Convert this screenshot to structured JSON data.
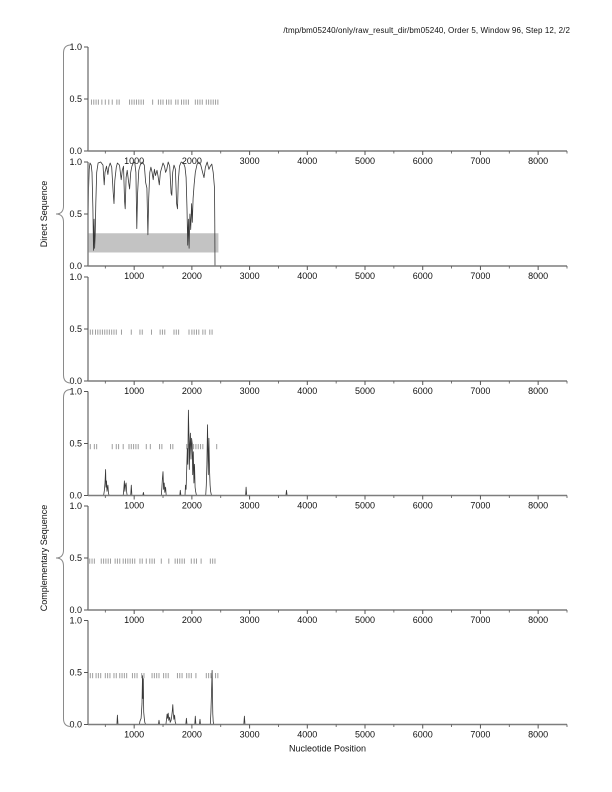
{
  "page": {
    "title": "/tmp/bm05240/only/raw_result_dir/bm05240, Order 5, Window 96, Step 12, 2/2"
  },
  "chart_data": {
    "type": "line",
    "title": "/tmp/bm05240/only/raw_result_dir/bm05240, Order 5, Window 96, Step 12, 2/2",
    "xlabel": "Nucleotide Position",
    "ylabel_groups": [
      "Direct Sequence",
      "Complementary Sequence"
    ],
    "xlim": [
      200,
      8500
    ],
    "ylim": [
      0,
      1
    ],
    "x_major_ticks": [
      1000,
      2000,
      3000,
      4000,
      5000,
      6000,
      7000,
      8000
    ],
    "x_minor_ticks": [
      500,
      1500,
      2500,
      3500,
      4500,
      5500,
      6500,
      7500,
      8500
    ],
    "y_ticks": [
      0.0,
      0.5,
      1.0
    ],
    "grid": false,
    "legend": null,
    "mark_row_y": 0.47,
    "colors": {
      "curve": "#383838",
      "marks": "#9e9e9e",
      "axis": "#7d7d7d",
      "tick": "#555555",
      "band": "#c3c3c3",
      "text": "#111111",
      "brace": "#8a8a8a"
    },
    "groups": [
      {
        "label": "Direct Sequence",
        "panel_indexes": [
          0,
          1,
          2
        ]
      },
      {
        "label": "Complementary Sequence",
        "panel_indexes": [
          3,
          4,
          5
        ]
      }
    ],
    "panels": [
      {
        "name": "direct-orf-marks-a",
        "marks": [
          260,
          300,
          340,
          380,
          440,
          500,
          560,
          620,
          700,
          740,
          920,
          960,
          1000,
          1040,
          1080,
          1120,
          1160,
          1320,
          1420,
          1460,
          1500,
          1560,
          1600,
          1640,
          1720,
          1760,
          1820,
          1860,
          1900,
          1940,
          2060,
          2100,
          2140,
          2180,
          2250,
          2290,
          2330,
          2370,
          2410,
          2450
        ]
      },
      {
        "name": "direct-coding-potential",
        "band": {
          "x": [
            200,
            2460
          ],
          "y": [
            0.13,
            0.315
          ]
        },
        "curve": [
          [
            200,
            0.45
          ],
          [
            210,
            0.75
          ],
          [
            220,
            0.93
          ],
          [
            235,
            0.99
          ],
          [
            255,
            0.97
          ],
          [
            270,
            0.9
          ],
          [
            285,
            0.55
          ],
          [
            295,
            0.15
          ],
          [
            305,
            0.45
          ],
          [
            315,
            0.17
          ],
          [
            325,
            0.3
          ],
          [
            335,
            0.6
          ],
          [
            350,
            0.9
          ],
          [
            375,
            0.99
          ],
          [
            420,
            1.0
          ],
          [
            460,
            0.97
          ],
          [
            480,
            0.78
          ],
          [
            495,
            0.9
          ],
          [
            520,
            0.96
          ],
          [
            545,
            0.88
          ],
          [
            560,
            0.95
          ],
          [
            585,
            0.99
          ],
          [
            610,
            0.95
          ],
          [
            635,
            0.72
          ],
          [
            650,
            0.6
          ],
          [
            665,
            0.82
          ],
          [
            690,
            0.95
          ],
          [
            710,
            0.99
          ],
          [
            745,
            0.97
          ],
          [
            775,
            0.83
          ],
          [
            795,
            0.92
          ],
          [
            815,
            0.96
          ],
          [
            835,
            0.62
          ],
          [
            845,
            0.55
          ],
          [
            860,
            0.85
          ],
          [
            880,
            0.92
          ],
          [
            905,
            0.8
          ],
          [
            920,
            0.74
          ],
          [
            940,
            0.9
          ],
          [
            960,
            0.96
          ],
          [
            985,
            0.99
          ],
          [
            1010,
            1.0
          ],
          [
            1030,
            0.9
          ],
          [
            1045,
            0.36
          ],
          [
            1060,
            0.7
          ],
          [
            1080,
            0.92
          ],
          [
            1105,
            0.97
          ],
          [
            1140,
            1.0
          ],
          [
            1175,
            0.97
          ],
          [
            1200,
            0.8
          ],
          [
            1220,
            0.75
          ],
          [
            1238,
            0.3
          ],
          [
            1252,
            0.65
          ],
          [
            1270,
            0.9
          ],
          [
            1290,
            0.95
          ],
          [
            1310,
            0.9
          ],
          [
            1330,
            0.83
          ],
          [
            1350,
            0.93
          ],
          [
            1370,
            0.87
          ],
          [
            1395,
            0.92
          ],
          [
            1415,
            0.86
          ],
          [
            1435,
            0.78
          ],
          [
            1455,
            0.9
          ],
          [
            1475,
            0.94
          ],
          [
            1500,
            0.99
          ],
          [
            1525,
            0.96
          ],
          [
            1545,
            0.9
          ],
          [
            1565,
            0.93
          ],
          [
            1590,
            1.0
          ],
          [
            1615,
            0.96
          ],
          [
            1640,
            0.7
          ],
          [
            1652,
            0.68
          ],
          [
            1668,
            0.9
          ],
          [
            1690,
            0.97
          ],
          [
            1715,
            0.93
          ],
          [
            1735,
            0.6
          ],
          [
            1750,
            0.55
          ],
          [
            1765,
            0.82
          ],
          [
            1785,
            0.96
          ],
          [
            1815,
            1.0
          ],
          [
            1855,
            0.99
          ],
          [
            1880,
            0.95
          ],
          [
            1900,
            0.85
          ],
          [
            1915,
            0.55
          ],
          [
            1928,
            0.2
          ],
          [
            1940,
            0.45
          ],
          [
            1952,
            0.17
          ],
          [
            1965,
            0.5
          ],
          [
            1980,
            0.35
          ],
          [
            1995,
            0.6
          ],
          [
            2008,
            0.42
          ],
          [
            2022,
            0.65
          ],
          [
            2038,
            0.78
          ],
          [
            2060,
            0.9
          ],
          [
            2090,
            0.98
          ],
          [
            2120,
            1.0
          ],
          [
            2155,
            0.97
          ],
          [
            2185,
            0.9
          ],
          [
            2210,
            0.85
          ],
          [
            2235,
            0.95
          ],
          [
            2265,
            1.0
          ],
          [
            2295,
            0.93
          ],
          [
            2320,
            0.96
          ],
          [
            2345,
            0.98
          ],
          [
            2370,
            0.9
          ],
          [
            2392,
            0.75
          ],
          [
            2398,
            0.4
          ],
          [
            2400,
            0.0
          ]
        ]
      },
      {
        "name": "direct-orf-marks-b",
        "marks": [
          240,
          280,
          330,
          370,
          410,
          450,
          490,
          530,
          570,
          610,
          650,
          690,
          780,
          950,
          1100,
          1140,
          1300,
          1450,
          1490,
          1530,
          1690,
          1730,
          1770,
          1950,
          2000,
          2040,
          2080,
          2120,
          2190,
          2230,
          2310,
          2350
        ]
      },
      {
        "name": "complementary-coding-potential-a",
        "marks": [
          240,
          310,
          350,
          620,
          690,
          730,
          810,
          910,
          950,
          990,
          1030,
          1070,
          1210,
          1280,
          1440,
          1480,
          1630,
          1670,
          1910,
          1950,
          1990,
          2030,
          2070,
          2110,
          2150,
          2190,
          2270,
          2430
        ],
        "curve": [
          [
            200,
            0
          ],
          [
            470,
            0
          ],
          [
            485,
            0.05
          ],
          [
            495,
            0.12
          ],
          [
            505,
            0.25
          ],
          [
            512,
            0.08
          ],
          [
            520,
            0.14
          ],
          [
            530,
            0.04
          ],
          [
            545,
            0.1
          ],
          [
            555,
            0.02
          ],
          [
            565,
            0
          ],
          [
            810,
            0
          ],
          [
            820,
            0.06
          ],
          [
            830,
            0.14
          ],
          [
            840,
            0.04
          ],
          [
            850,
            0.1
          ],
          [
            860,
            0.12
          ],
          [
            870,
            0.03
          ],
          [
            880,
            0
          ],
          [
            940,
            0
          ],
          [
            950,
            0.1
          ],
          [
            960,
            0
          ],
          [
            1150,
            0
          ],
          [
            1160,
            0.03
          ],
          [
            1170,
            0
          ],
          [
            1470,
            0
          ],
          [
            1480,
            0.08
          ],
          [
            1490,
            0.16
          ],
          [
            1500,
            0.23
          ],
          [
            1510,
            0.06
          ],
          [
            1520,
            0.12
          ],
          [
            1530,
            0.03
          ],
          [
            1545,
            0.08
          ],
          [
            1555,
            0
          ],
          [
            1790,
            0
          ],
          [
            1800,
            0.05
          ],
          [
            1810,
            0
          ],
          [
            1880,
            0
          ],
          [
            1890,
            0.1
          ],
          [
            1900,
            0.06
          ],
          [
            1910,
            0.25
          ],
          [
            1920,
            0.45
          ],
          [
            1930,
            0.3
          ],
          [
            1940,
            0.82
          ],
          [
            1950,
            0.55
          ],
          [
            1955,
            0.25
          ],
          [
            1965,
            0.5
          ],
          [
            1975,
            0.6
          ],
          [
            1985,
            0.35
          ],
          [
            1995,
            0.55
          ],
          [
            2005,
            0.5
          ],
          [
            2015,
            0.2
          ],
          [
            2025,
            0.42
          ],
          [
            2035,
            0.12
          ],
          [
            2045,
            0.3
          ],
          [
            2055,
            0.08
          ],
          [
            2065,
            0.04
          ],
          [
            2080,
            0
          ],
          [
            2240,
            0
          ],
          [
            2250,
            0.1
          ],
          [
            2260,
            0.3
          ],
          [
            2270,
            0.68
          ],
          [
            2280,
            0.4
          ],
          [
            2285,
            0.2
          ],
          [
            2295,
            0.55
          ],
          [
            2305,
            0.25
          ],
          [
            2315,
            0.1
          ],
          [
            2325,
            0.04
          ],
          [
            2340,
            0
          ],
          [
            2930,
            0
          ],
          [
            2940,
            0.08
          ],
          [
            2950,
            0
          ],
          [
            3630,
            0
          ],
          [
            3640,
            0.05
          ],
          [
            3650,
            0
          ],
          [
            8500,
            0
          ]
        ]
      },
      {
        "name": "complementary-orf-marks",
        "marks": [
          230,
          270,
          310,
          430,
          470,
          510,
          550,
          590,
          670,
          710,
          750,
          810,
          850,
          890,
          930,
          970,
          1010,
          1100,
          1140,
          1210,
          1270,
          1310,
          1350,
          1470,
          1600,
          1710,
          1750,
          1790,
          1830,
          1870,
          1990,
          2040,
          2080,
          2160,
          2320,
          2360,
          2400
        ]
      },
      {
        "name": "complementary-coding-potential-b",
        "marks": [
          240,
          280,
          340,
          380,
          420,
          500,
          540,
          580,
          650,
          690,
          750,
          790,
          830,
          870,
          970,
          1010,
          1050,
          1130,
          1170,
          1310,
          1350,
          1390,
          1430,
          1510,
          1550,
          1590,
          1750,
          1790,
          1830,
          1910,
          1950,
          1990,
          2070,
          2250,
          2290,
          2330,
          2410,
          2450
        ],
        "curve": [
          [
            200,
            0
          ],
          [
            700,
            0
          ],
          [
            710,
            0.09
          ],
          [
            720,
            0
          ],
          [
            1090,
            0
          ],
          [
            1100,
            0.03
          ],
          [
            1120,
            0.06
          ],
          [
            1135,
            0.2
          ],
          [
            1145,
            0.47
          ],
          [
            1152,
            0.25
          ],
          [
            1158,
            0.44
          ],
          [
            1165,
            0.12
          ],
          [
            1175,
            0.06
          ],
          [
            1185,
            0.02
          ],
          [
            1200,
            0
          ],
          [
            1420,
            0
          ],
          [
            1430,
            0.04
          ],
          [
            1440,
            0
          ],
          [
            1550,
            0
          ],
          [
            1560,
            0.05
          ],
          [
            1570,
            0.1
          ],
          [
            1580,
            0.06
          ],
          [
            1590,
            0.11
          ],
          [
            1600,
            0.04
          ],
          [
            1615,
            0.07
          ],
          [
            1625,
            0.02
          ],
          [
            1640,
            0.04
          ],
          [
            1650,
            0.08
          ],
          [
            1660,
            0.13
          ],
          [
            1670,
            0.19
          ],
          [
            1678,
            0.1
          ],
          [
            1688,
            0.05
          ],
          [
            1700,
            0.09
          ],
          [
            1710,
            0.03
          ],
          [
            1725,
            0
          ],
          [
            1895,
            0
          ],
          [
            1905,
            0.06
          ],
          [
            1915,
            0
          ],
          [
            2050,
            0
          ],
          [
            2060,
            0.08
          ],
          [
            2070,
            0
          ],
          [
            2130,
            0
          ],
          [
            2140,
            0.05
          ],
          [
            2150,
            0
          ],
          [
            2320,
            0
          ],
          [
            2330,
            0.12
          ],
          [
            2340,
            0.3
          ],
          [
            2350,
            0.52
          ],
          [
            2358,
            0.28
          ],
          [
            2363,
            0.1
          ],
          [
            2370,
            0.03
          ],
          [
            2380,
            0
          ],
          [
            2900,
            0
          ],
          [
            2910,
            0.08
          ],
          [
            2920,
            0
          ],
          [
            8500,
            0
          ]
        ]
      }
    ]
  }
}
